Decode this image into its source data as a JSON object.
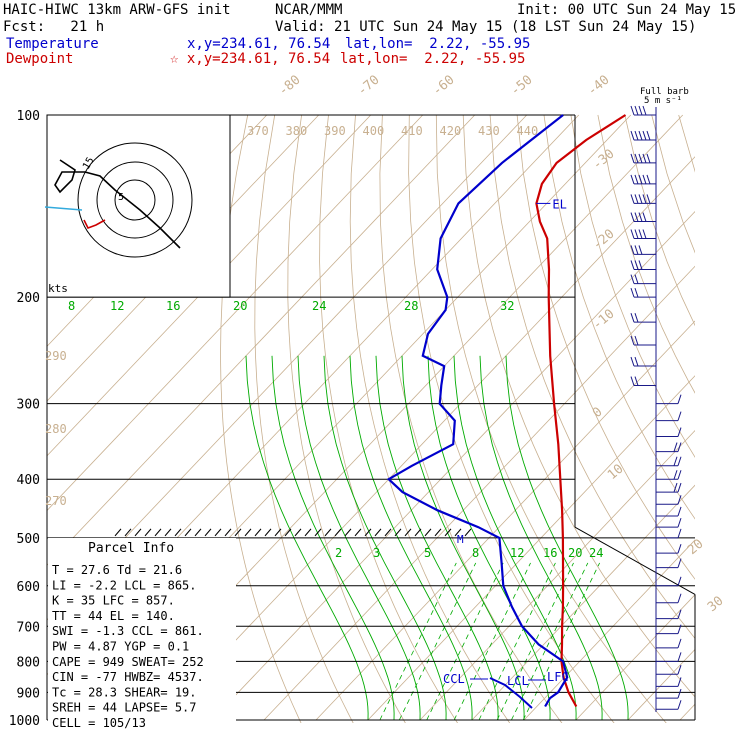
{
  "header": {
    "model": "HAIC-HIWC 13km ARW-GFS init",
    "org": "NCAR/MMM",
    "init": "Init: 00 UTC Sun 24 May 15",
    "fcst": "Fcst:   21 h",
    "valid": "Valid: 21 UTC Sun 24 May 15 (18 LST Sun 24 May 15)",
    "temp_label": "Temperature",
    "temp_xy": "x,y=234.61, 76.54",
    "temp_latlon": "lat,lon=  2.22, -55.95",
    "dew_label": "Dewpoint",
    "dew_xy": "☆ x,y=234.61, 76.54",
    "dew_latlon": "lat,lon=  2.22, -55.95"
  },
  "barb_legend": {
    "line1": "Full barb",
    "line2": "5 m s⁻¹"
  },
  "colors": {
    "temperature": "#cc0000",
    "dewpoint": "#0000cc",
    "isotherm": "#c8b090",
    "theta": "#c8b090",
    "theta_e": "#00aa00",
    "mixing_ratio": "#00aa00",
    "barbs": "#1a1a88",
    "grid": "#000000"
  },
  "chart_data": {
    "type": "line",
    "title": "",
    "y_axis": {
      "label": "",
      "scale": "log-pressure",
      "ylim": [
        1000,
        100
      ],
      "ticks": [
        100,
        200,
        300,
        400,
        500,
        600,
        700,
        800,
        900,
        1000
      ]
    },
    "isotherm_labels": [
      "-80",
      "-70",
      "-60",
      "-50",
      "-40",
      "-30",
      "-20",
      "-10",
      "0",
      "10",
      "20",
      "30",
      "40"
    ],
    "theta_labels_top": [
      "370",
      "380",
      "390",
      "400",
      "410",
      "420",
      "430",
      "440"
    ],
    "theta_labels_left": [
      "290",
      "280",
      "270"
    ],
    "theta_e_labels": [
      "8",
      "12",
      "16",
      "20",
      "24",
      "28",
      "32"
    ],
    "mixing_ratio_labels": [
      "2",
      "3",
      "5",
      "8",
      "12",
      "16",
      "20",
      "24"
    ],
    "series": [
      {
        "name": "Temperature",
        "pressure": [
          950,
          900,
          850,
          800,
          750,
          700,
          650,
          600,
          550,
          500,
          450,
          400,
          350,
          300,
          250,
          200,
          180,
          160,
          150,
          140,
          130,
          120,
          110,
          100
        ],
        "values": [
          27.6,
          23.5,
          19.8,
          16.5,
          13.5,
          10.2,
          6.8,
          3.0,
          -1.2,
          -5.8,
          -11.0,
          -17.0,
          -23.8,
          -32.0,
          -41.5,
          -52.5,
          -57.5,
          -63.5,
          -68.0,
          -72.0,
          -74.5,
          -75.5,
          -74.0,
          -71.0
        ]
      },
      {
        "name": "Dewpoint",
        "pressure": [
          950,
          920,
          900,
          850,
          800,
          750,
          700,
          650,
          600,
          550,
          500,
          480,
          450,
          420,
          400,
          380,
          350,
          320,
          300,
          280,
          260,
          250,
          230,
          210,
          200,
          180,
          160,
          140,
          120,
          100
        ],
        "values": [
          21.6,
          21.0,
          21.5,
          20.5,
          16.8,
          9.0,
          2.5,
          -3.0,
          -8.5,
          -13.0,
          -18.0,
          -24.0,
          -35.0,
          -45.0,
          -50.0,
          -48.0,
          -44.0,
          -48.0,
          -54.0,
          -57.0,
          -60.0,
          -66.0,
          -69.0,
          -70.0,
          -72.0,
          -79.0,
          -84.0,
          -87.0,
          -86.0,
          -83.0
        ]
      }
    ],
    "levels": [
      {
        "label": "LCL",
        "pressure": 865
      },
      {
        "label": "LFC",
        "pressure": 857
      },
      {
        "label": "CCL",
        "pressure": 861
      },
      {
        "label": "EL",
        "pressure": 140
      },
      {
        "label": "M",
        "pressure": 500
      }
    ],
    "parcel_info": {
      "title": "Parcel Info",
      "rows": [
        "T  =    27.6  Td =  21.6",
        "LI =    -2.2  LCL =  865.",
        "K  =      35  LFC =  857.",
        "TT =      44  EL  =  140.",
        "SWI =   -1.3  CCL =  861.",
        "PW =    4.87  YGP =   0.1",
        "CAPE =   949  SWEAT=  252",
        "CIN =    -77  HWBZ= 4537.",
        "Tc =    28.3  SHEAR=  19.",
        "SREH =    44  LAPSE=  5.7",
        "CELL = 105/13"
      ]
    },
    "hodograph": {
      "ring_labels": [
        "5",
        "15"
      ],
      "units": "kts"
    },
    "wind_barbs": {
      "pressure": [
        100,
        110,
        120,
        130,
        140,
        150,
        160,
        170,
        180,
        190,
        200,
        220,
        240,
        260,
        280,
        300,
        320,
        340,
        360,
        380,
        400,
        420,
        440,
        460,
        480,
        500,
        530,
        560,
        600,
        640,
        680,
        720,
        760,
        800,
        840,
        880,
        920,
        960
      ],
      "speed_ms": [
        22,
        24,
        25,
        24,
        23,
        21,
        18,
        16,
        14,
        12,
        11,
        10,
        10,
        9,
        8,
        2,
        6,
        7,
        8,
        9,
        9,
        8,
        7,
        7,
        7,
        7,
        6,
        6,
        6,
        5,
        5,
        5,
        5,
        5,
        5,
        6,
        6,
        6
      ]
    }
  }
}
